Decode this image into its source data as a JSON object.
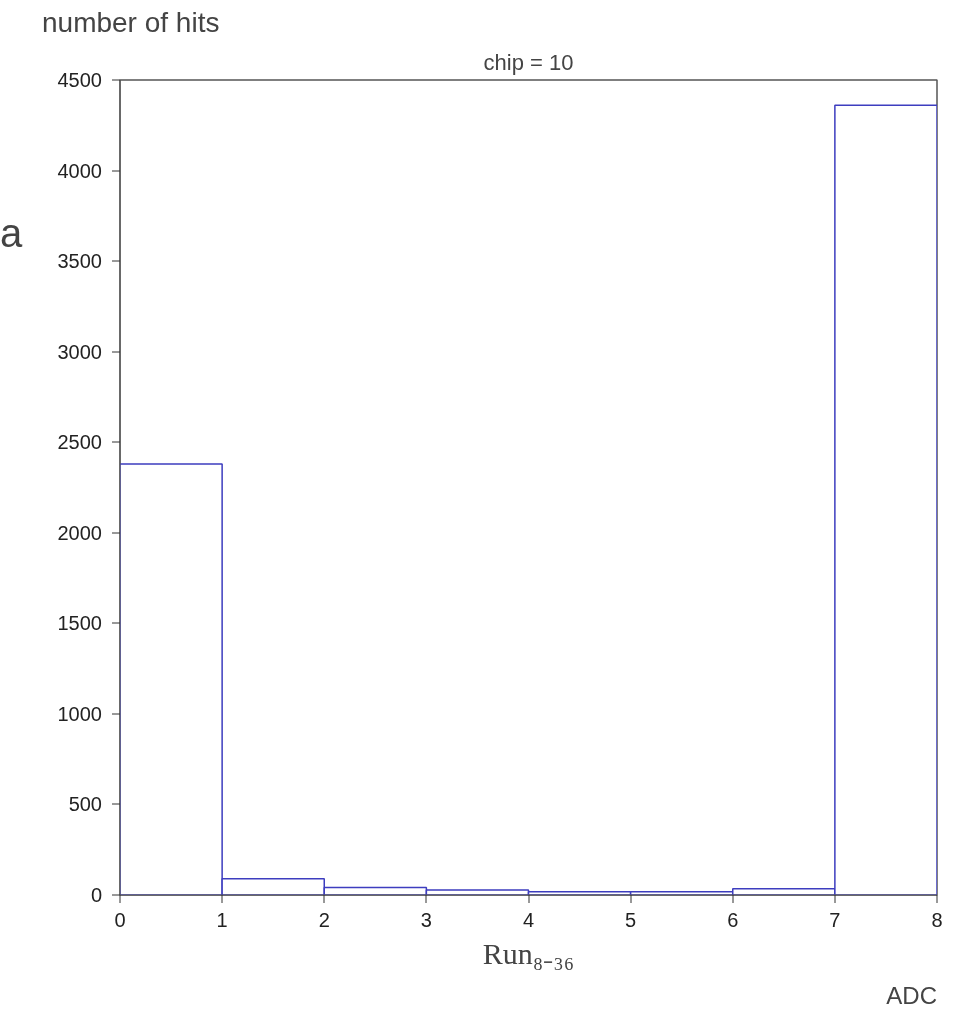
{
  "chart_data": {
    "type": "histogram",
    "title": "chip = 10",
    "ylabel": "number of hits",
    "xlabel": "ADC",
    "annotations": [
      "Run₈₋₃₆",
      "a"
    ],
    "bins": [
      0,
      1,
      2,
      3,
      4,
      5,
      6,
      7,
      8
    ],
    "values": [
      2380,
      90,
      42,
      28,
      18,
      18,
      34,
      4360
    ],
    "color": "#3d3dbf",
    "xlim": [
      0,
      8
    ],
    "xticks": [
      0,
      1,
      2,
      3,
      4,
      5,
      6,
      7,
      8
    ],
    "ylim": [
      0,
      4500
    ],
    "yticks": [
      0,
      500,
      1000,
      1500,
      2000,
      2500,
      3000,
      3500,
      4000,
      4500
    ],
    "grid": false
  }
}
